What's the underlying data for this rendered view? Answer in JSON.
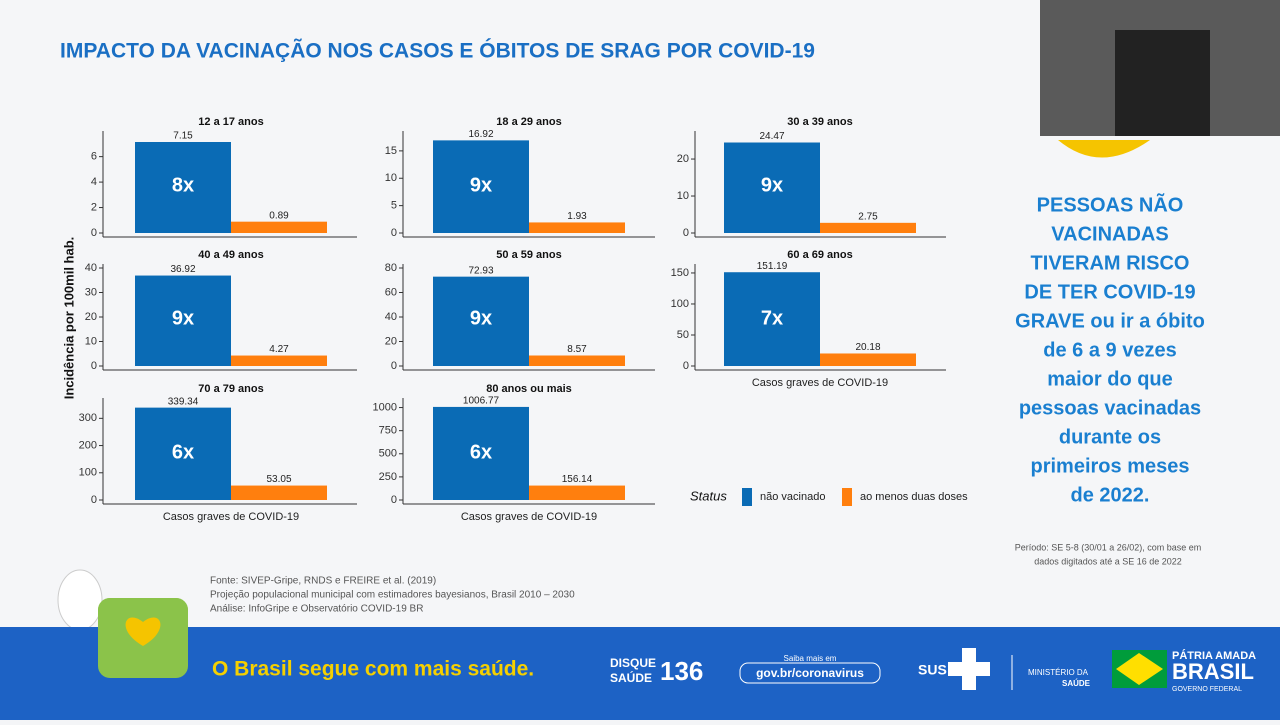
{
  "header": {
    "title": "IMPACTO DA VACINAÇÃO NOS CASOS E ÓBITOS DE SRAG POR COVID-19"
  },
  "ylabel": "Incidência por 100mil hab.",
  "legend": {
    "title": "Status",
    "series": [
      {
        "name": "não vacinado",
        "color": "#0a6bb5"
      },
      {
        "name": "ao menos duas doses",
        "color": "#ff7f0e"
      }
    ]
  },
  "chart_data": [
    {
      "type": "bar",
      "title": "12 a 17 anos",
      "values": [
        7.15,
        0.89
      ],
      "annotation": "8x",
      "ylim": [
        0,
        7.7
      ],
      "yticks": [
        0,
        2,
        4,
        6
      ]
    },
    {
      "type": "bar",
      "title": "18 a 29 anos",
      "values": [
        16.92,
        1.93
      ],
      "annotation": "9x",
      "ylim": [
        0,
        17.9
      ],
      "yticks": [
        0,
        5,
        10,
        15
      ]
    },
    {
      "type": "bar",
      "title": "30 a 39 anos",
      "values": [
        24.47,
        2.75
      ],
      "annotation": "9x",
      "ylim": [
        0,
        26.5
      ],
      "yticks": [
        0,
        10,
        20
      ]
    },
    {
      "type": "bar",
      "title": "40 a 49 anos",
      "values": [
        36.92,
        4.27
      ],
      "annotation": "9x",
      "ylim": [
        0,
        40
      ],
      "yticks": [
        0,
        10,
        20,
        30,
        40
      ]
    },
    {
      "type": "bar",
      "title": "50 a 59 anos",
      "values": [
        72.93,
        8.57
      ],
      "annotation": "9x",
      "ylim": [
        0,
        80
      ],
      "yticks": [
        0,
        20,
        40,
        60,
        80
      ]
    },
    {
      "type": "bar",
      "title": "60 a 69 anos",
      "values": [
        151.19,
        20.18
      ],
      "annotation": "7x",
      "ylim": [
        0,
        158
      ],
      "yticks": [
        0,
        50,
        100,
        150
      ],
      "xlabel": "Casos graves de COVID-19"
    },
    {
      "type": "bar",
      "title": "70 a 79 anos",
      "values": [
        339.34,
        53.05
      ],
      "annotation": "6x",
      "ylim": [
        0,
        360
      ],
      "yticks": [
        0,
        100,
        200,
        300
      ],
      "xlabel": "Casos graves de COVID-19"
    },
    {
      "type": "bar",
      "title": "80 anos ou mais",
      "values": [
        1006.77,
        156.14
      ],
      "annotation": "6x",
      "ylim": [
        0,
        1060
      ],
      "yticks": [
        0,
        250,
        500,
        750,
        1000
      ],
      "xlabel": "Casos graves de COVID-19"
    }
  ],
  "sidebar": {
    "lines": [
      "PESSOAS NÃO",
      "VACINADAS",
      "TIVERAM RISCO",
      "DE TER COVID-19",
      "GRAVE ou ir a óbito",
      "de 6 a 9 vezes",
      "maior do que",
      "pessoas vacinadas",
      "durante os",
      "primeiros meses",
      "de 2022."
    ],
    "note": [
      "Período: SE 5-8 (30/01 a 26/02), com base em",
      "dados digitados até a SE 16 de 2022"
    ]
  },
  "sources": [
    "Fonte: SIVEP-Gripe, RNDS e FREIRE et al. (2019)",
    "Projeção populacional municipal com estimadores bayesianos, Brasil 2010 – 2030",
    "Análise: InfoGripe e Observatório COVID-19 BR"
  ],
  "banner": {
    "slogan": "O Brasil segue com mais saúde.",
    "disque": "DISQUE",
    "saude": "SAÚDE",
    "number": "136",
    "saiba": "Saiba mais em",
    "site": "gov.br/coronavirus",
    "sus": "SUS",
    "ministerio": "MINISTÉRIO DA",
    "ministerio2": "SAÚDE",
    "patria": "PÁTRIA AMADA",
    "brasil": "BRASIL",
    "governo": "GOVERNO FEDERAL"
  }
}
